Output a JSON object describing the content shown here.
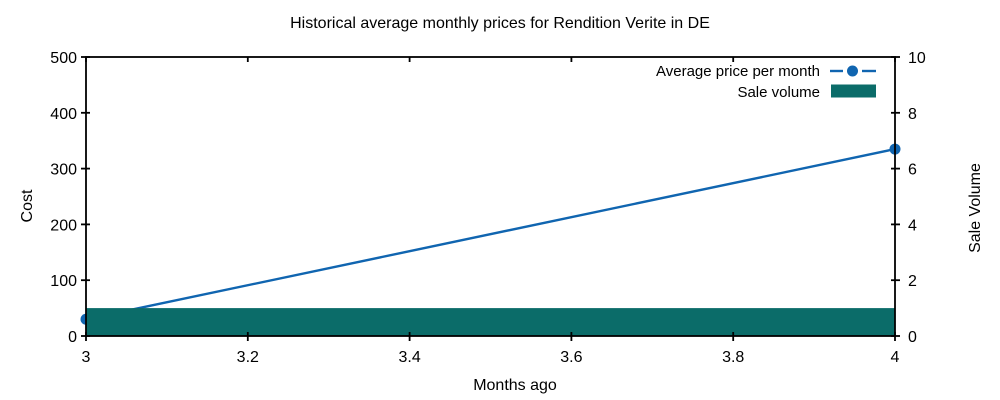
{
  "chart_data": {
    "type": "line+bar",
    "title": "Historical average monthly prices for Rendition Verite in DE",
    "xlabel": "Months ago",
    "ylabel_left": "Cost",
    "ylabel_right": "Sale Volume",
    "xlim": [
      3,
      4
    ],
    "ylim_left": [
      0,
      500
    ],
    "ylim_right": [
      0,
      10
    ],
    "x_ticks": [
      3,
      3.2,
      3.4,
      3.6,
      3.8,
      4
    ],
    "x_tick_labels": [
      "3",
      "3.2",
      "3.4",
      "3.6",
      "3.8",
      "4"
    ],
    "y_ticks_left": [
      0,
      100,
      200,
      300,
      400,
      500
    ],
    "y_ticks_right": [
      0,
      2,
      4,
      6,
      8,
      10
    ],
    "grid": false,
    "legend_position": "top-right-inside",
    "series": [
      {
        "name": "Average price per month",
        "type": "line",
        "y_axis": "left",
        "color": "#1065b0",
        "marker": "circle",
        "x": [
          3,
          4
        ],
        "y": [
          30,
          335
        ]
      },
      {
        "name": "Sale volume",
        "type": "bar",
        "y_axis": "right",
        "color": "#0b6c69",
        "bar_width": 1.0,
        "x": [
          3,
          4
        ],
        "y": [
          1,
          1
        ]
      }
    ]
  },
  "colors": {
    "line": "#1065b0",
    "bar": "#0b6c69",
    "axis": "#000000",
    "background": "#ffffff"
  }
}
